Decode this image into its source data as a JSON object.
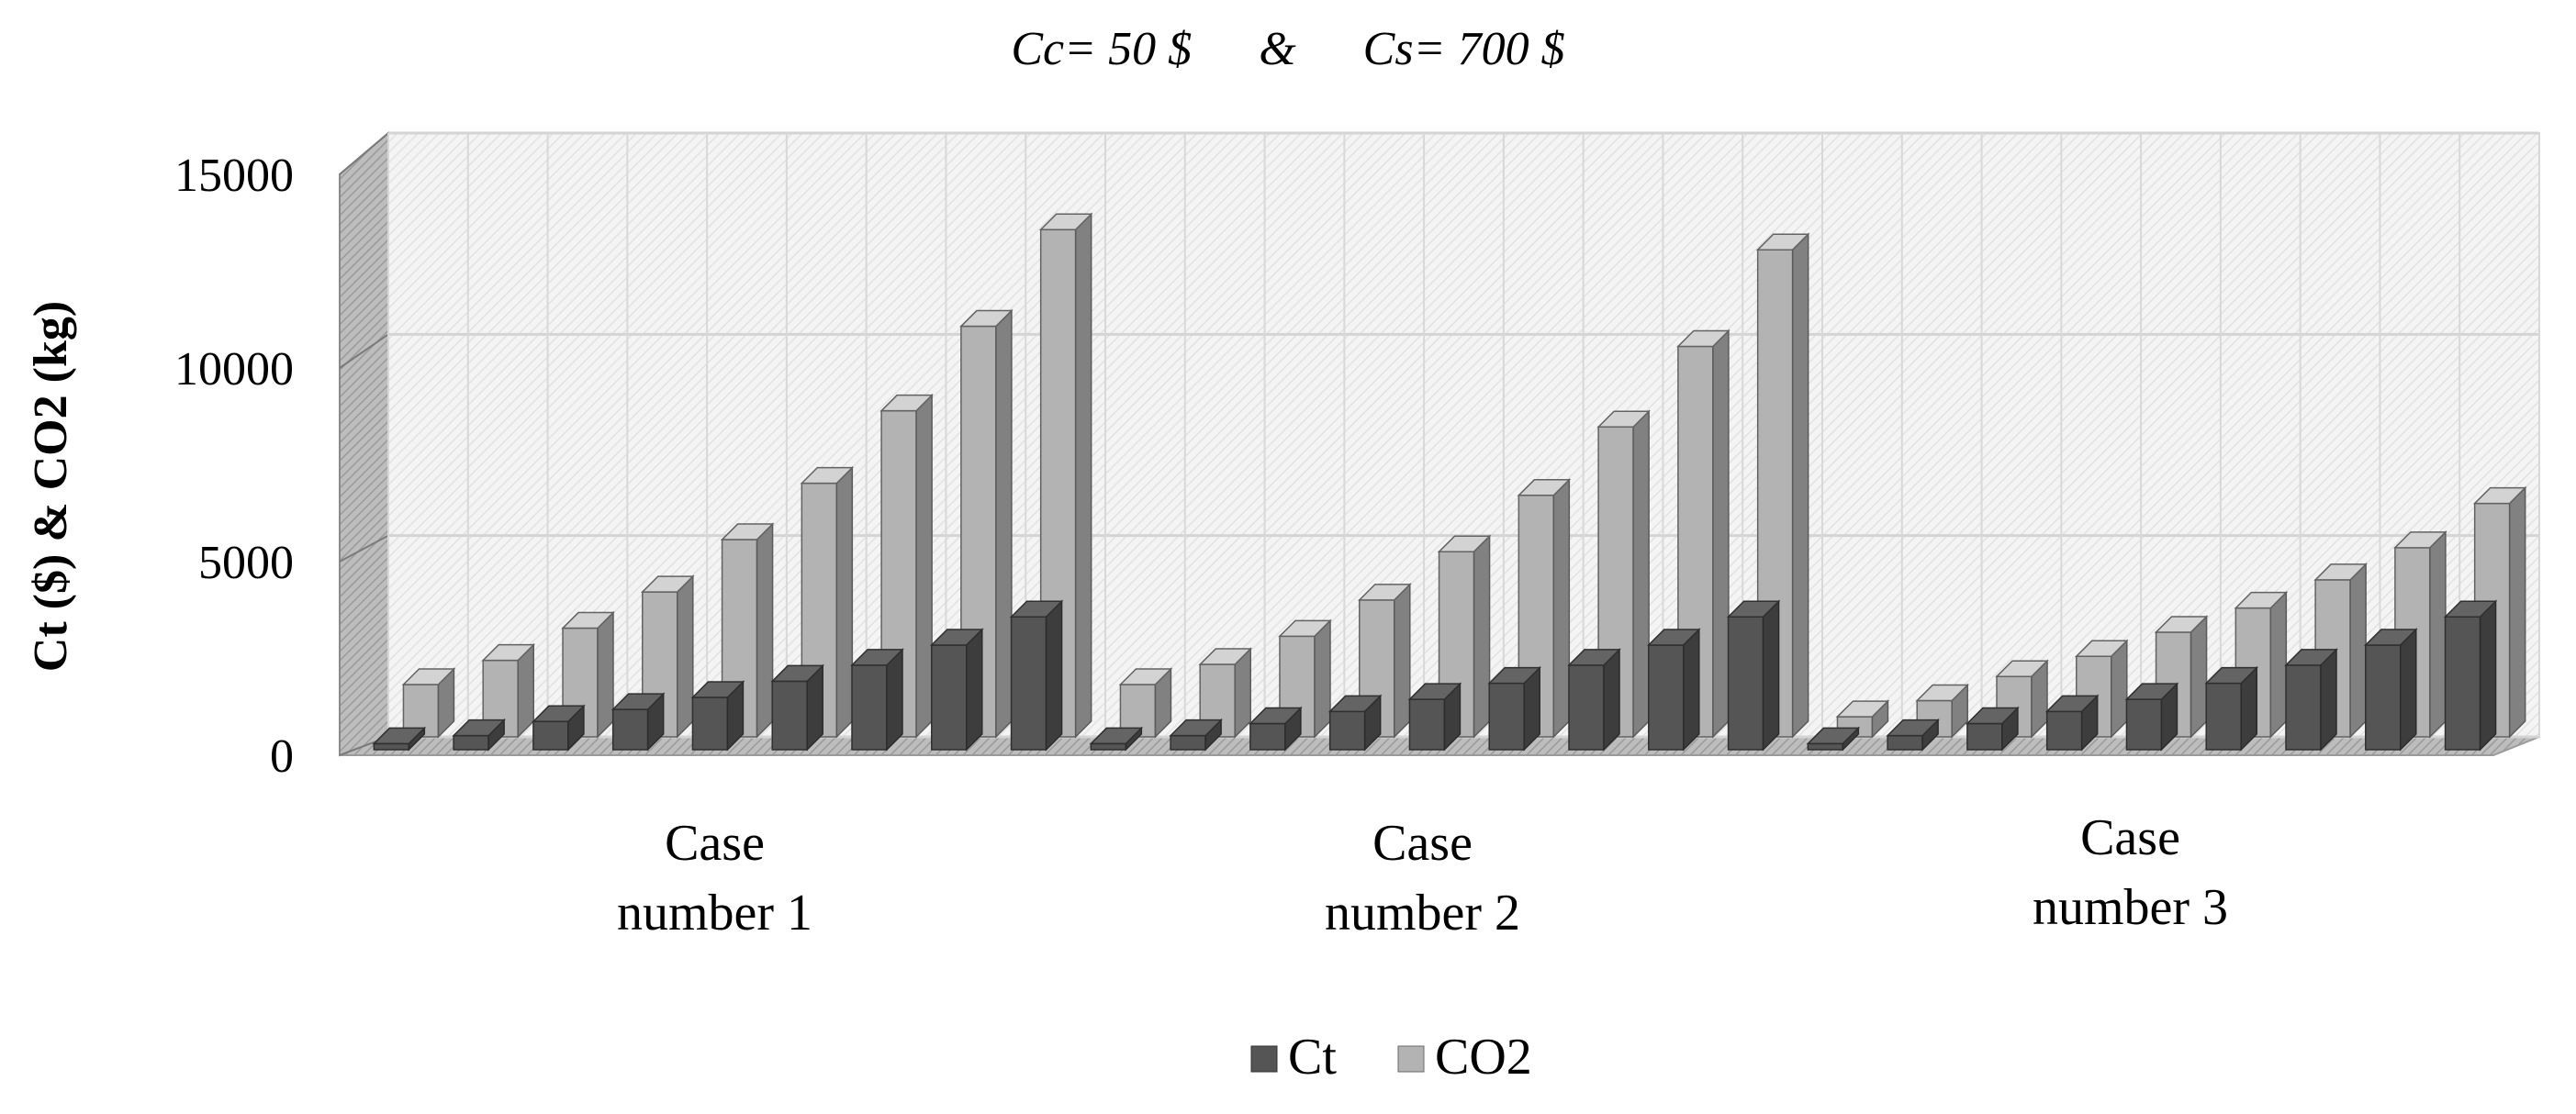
{
  "chart_data": {
    "type": "bar",
    "title": "Cc= 50 $    &    Cs= 700 $",
    "title_parts": {
      "cc": "Cc= 50 $",
      "amp": "&",
      "cs": "Cs= 700 $"
    },
    "xlabel": "",
    "ylabel": "Ct ($) & CO2  (kg)",
    "ylim": [
      0,
      15000
    ],
    "yticks": [
      0,
      5000,
      10000,
      15000
    ],
    "grid": true,
    "legend_position": "bottom-center",
    "categories": [
      {
        "line1": "Case",
        "line2": "number 1"
      },
      {
        "line1": "Case",
        "line2": "number 2"
      },
      {
        "line1": "Case",
        "line2": "number 3"
      }
    ],
    "series": [
      {
        "name": "Ct",
        "color": "#555555",
        "groups": [
          [
            150,
            350,
            700,
            1000,
            1300,
            1700,
            2100,
            2600,
            3300
          ],
          [
            150,
            350,
            650,
            950,
            1250,
            1650,
            2100,
            2600,
            3300
          ],
          [
            150,
            350,
            650,
            950,
            1250,
            1650,
            2100,
            2600,
            3300
          ]
        ]
      },
      {
        "name": "CO2",
        "color": "#b3b3b3",
        "groups": [
          [
            1300,
            1900,
            2700,
            3600,
            4900,
            6300,
            8100,
            10200,
            12600
          ],
          [
            1300,
            1800,
            2500,
            3400,
            4600,
            6000,
            7700,
            9700,
            12100
          ],
          [
            500,
            900,
            1500,
            2000,
            2600,
            3200,
            3900,
            4700,
            5800
          ]
        ]
      }
    ]
  }
}
